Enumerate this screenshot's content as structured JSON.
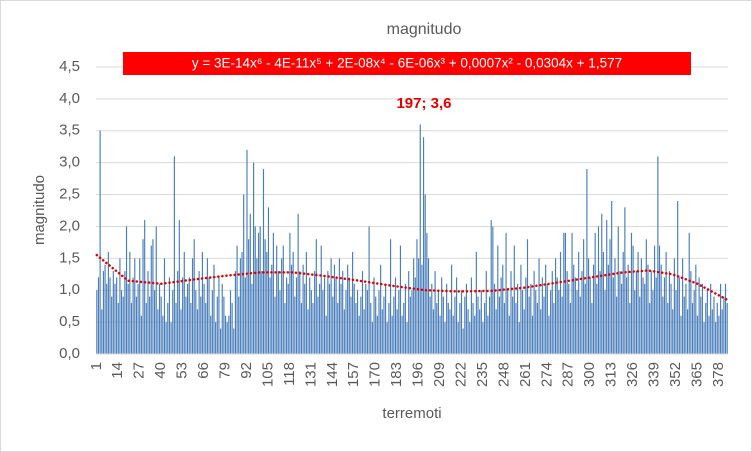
{
  "chart_data": {
    "type": "bar",
    "title": "magnitudo",
    "xlabel": "terremoti",
    "ylabel": "magnitudo",
    "color": "#4a7ebb",
    "grid": true,
    "annotation": "197; 3,6",
    "ylim": [
      0,
      4.5
    ],
    "yticks": [
      {
        "value": 0,
        "label": "0,0"
      },
      {
        "value": 0.5,
        "label": "0,5"
      },
      {
        "value": 1,
        "label": "1,0"
      },
      {
        "value": 1.5,
        "label": "1,5"
      },
      {
        "value": 2,
        "label": "2,0"
      },
      {
        "value": 2.5,
        "label": "2,5"
      },
      {
        "value": 3,
        "label": "3,0"
      },
      {
        "value": 3.5,
        "label": "3,5"
      },
      {
        "value": 4,
        "label": "4,0"
      },
      {
        "value": 4.5,
        "label": "4,5"
      }
    ],
    "categories": [
      1,
      null,
      null,
      null,
      null,
      null,
      null,
      null,
      null,
      null,
      null,
      null,
      null,
      14,
      null,
      null,
      null,
      null,
      null,
      null,
      null,
      null,
      null,
      null,
      null,
      null,
      27,
      null,
      null,
      null,
      null,
      null,
      null,
      null,
      null,
      null,
      null,
      null,
      null,
      40,
      null,
      null,
      null,
      null,
      null,
      null,
      null,
      null,
      null,
      null,
      null,
      null,
      53,
      null,
      null,
      null,
      null,
      null,
      null,
      null,
      null,
      null,
      null,
      null,
      null,
      66,
      null,
      null,
      null,
      null,
      null,
      null,
      null,
      null,
      null,
      null,
      null,
      null,
      79,
      null,
      null,
      null,
      null,
      null,
      null,
      null,
      null,
      null,
      null,
      null,
      null,
      92,
      null,
      null,
      null,
      null,
      null,
      null,
      null,
      null,
      null,
      null,
      null,
      null,
      105,
      null,
      null,
      null,
      null,
      null,
      null,
      null,
      null,
      null,
      null,
      null,
      null,
      118,
      null,
      null,
      null,
      null,
      null,
      null,
      null,
      null,
      null,
      null,
      null,
      null,
      131,
      null,
      null,
      null,
      null,
      null,
      null,
      null,
      null,
      null,
      null,
      null,
      null,
      144,
      null,
      null,
      null,
      null,
      null,
      null,
      null,
      null,
      null,
      null,
      null,
      null,
      157,
      null,
      null,
      null,
      null,
      null,
      null,
      null,
      null,
      null,
      null,
      null,
      null,
      170,
      null,
      null,
      null,
      null,
      null,
      null,
      null,
      null,
      null,
      null,
      null,
      null,
      183,
      null,
      null,
      null,
      null,
      null,
      null,
      null,
      null,
      null,
      null,
      null,
      null,
      196,
      null,
      null,
      null,
      null,
      null,
      null,
      null,
      null,
      null,
      null,
      null,
      null,
      209,
      null,
      null,
      null,
      null,
      null,
      null,
      null,
      null,
      null,
      null,
      null,
      null,
      222,
      null,
      null,
      null,
      null,
      null,
      null,
      null,
      null,
      null,
      null,
      null,
      null,
      235,
      null,
      null,
      null,
      null,
      null,
      null,
      null,
      null,
      null,
      null,
      null,
      null,
      248,
      null,
      null,
      null,
      null,
      null,
      null,
      null,
      null,
      null,
      null,
      null,
      null,
      261,
      null,
      null,
      null,
      null,
      null,
      null,
      null,
      null,
      null,
      null,
      null,
      null,
      274,
      null,
      null,
      null,
      null,
      null,
      null,
      null,
      null,
      null,
      null,
      null,
      null,
      287,
      null,
      null,
      null,
      null,
      null,
      null,
      null,
      null,
      null,
      null,
      null,
      null,
      300,
      null,
      null,
      null,
      null,
      null,
      null,
      null,
      null,
      null,
      null,
      null,
      null,
      313,
      null,
      null,
      null,
      null,
      null,
      null,
      null,
      null,
      null,
      null,
      null,
      null,
      326,
      null,
      null,
      null,
      null,
      null,
      null,
      null,
      null,
      null,
      null,
      null,
      null,
      339,
      null,
      null,
      null,
      null,
      null,
      null,
      null,
      null,
      null,
      null,
      null,
      null,
      352,
      null,
      null,
      null,
      null,
      null,
      null,
      null,
      null,
      null,
      null,
      null,
      null,
      365,
      null,
      null,
      null,
      null,
      null,
      null,
      null,
      null,
      null,
      null,
      null,
      null,
      378,
      null,
      null,
      null,
      null,
      null
    ],
    "values": [
      1.0,
      1.2,
      3.5,
      0.7,
      1.3,
      1.4,
      1.1,
      1.6,
      1.2,
      0.9,
      1.3,
      1.1,
      1.2,
      0.8,
      1.5,
      1.0,
      0.9,
      1.3,
      2.0,
      1.1,
      1.6,
      0.8,
      1.2,
      1.5,
      0.9,
      1.1,
      1.5,
      0.6,
      1.8,
      2.1,
      0.8,
      1.3,
      0.9,
      1.7,
      1.8,
      1.0,
      2.0,
      0.7,
      1.1,
      0.9,
      0.6,
      1.5,
      0.5,
      0.8,
      1.2,
      0.5,
      1.0,
      3.1,
      0.8,
      1.3,
      2.1,
      0.7,
      1.2,
      1.6,
      0.9,
      1.1,
      1.2,
      0.8,
      1.5,
      1.8,
      1.0,
      0.7,
      1.3,
      0.9,
      1.6,
      1.1,
      0.8,
      1.5,
      1.2,
      0.6,
      1.0,
      1.4,
      0.5,
      0.9,
      1.2,
      0.4,
      1.1,
      0.9,
      0.6,
      0.5,
      0.6,
      1.0,
      0.8,
      0.4,
      1.3,
      1.7,
      0.9,
      1.5,
      1.6,
      2.5,
      1.2,
      3.2,
      1.8,
      2.2,
      1.1,
      3.0,
      2.0,
      1.5,
      1.9,
      2.0,
      1.3,
      2.9,
      1.8,
      1.6,
      2.3,
      1.2,
      1.4,
      1.9,
      0.9,
      1.7,
      1.3,
      1.0,
      1.5,
      1.7,
      0.8,
      1.2,
      1.1,
      1.9,
      1.4,
      1.6,
      0.9,
      1.2,
      2.2,
      1.3,
      0.8,
      1.4,
      1.1,
      1.6,
      0.7,
      1.2,
      1.0,
      0.8,
      1.3,
      1.8,
      0.9,
      1.1,
      1.7,
      1.0,
      1.2,
      0.6,
      1.3,
      1.1,
      1.5,
      0.9,
      1.4,
      1.2,
      0.8,
      1.5,
      1.1,
      1.3,
      0.7,
      1.0,
      1.4,
      1.2,
      0.9,
      1.6,
      1.1,
      0.8,
      1.0,
      0.6,
      0.9,
      1.3,
      0.7,
      1.1,
      1.0,
      2.0,
      0.8,
      0.5,
      1.2,
      0.9,
      0.6,
      1.0,
      1.4,
      0.7,
      0.9,
      1.1,
      0.5,
      0.8,
      1.8,
      0.6,
      0.9,
      1.2,
      0.7,
      1.0,
      1.7,
      0.6,
      0.8,
      1.1,
      0.5,
      1.3,
      0.9,
      1.0,
      1.5,
      1.2,
      1.8,
      1.5,
      3.6,
      1.4,
      3.4,
      2.5,
      1.9,
      1.5,
      0.9,
      1.1,
      0.7,
      1.3,
      0.8,
      1.0,
      0.6,
      1.2,
      0.9,
      0.5,
      1.1,
      0.8,
      0.7,
      1.4,
      0.6,
      0.9,
      1.2,
      0.5,
      0.8,
      1.0,
      0.4,
      0.9,
      1.1,
      0.7,
      0.5,
      1.2,
      0.8,
      0.6,
      1.6,
      0.9,
      0.7,
      1.0,
      0.5,
      0.8,
      1.3,
      0.6,
      0.9,
      2.1,
      2.0,
      1.1,
      0.7,
      1.7,
      0.9,
      1.2,
      1.4,
      0.8,
      1.9,
      1.0,
      0.6,
      1.3,
      0.9,
      1.7,
      0.8,
      1.1,
      0.5,
      1.4,
      1.0,
      0.7,
      1.2,
      1.8,
      0.9,
      1.1,
      0.6,
      1.3,
      1.0,
      0.8,
      1.5,
      0.7,
      1.2,
      0.9,
      1.4,
      1.1,
      0.6,
      1.0,
      1.3,
      0.8,
      1.5,
      1.2,
      1.0,
      1.6,
      0.9,
      1.9,
      1.9,
      1.3,
      1.1,
      0.8,
      1.9,
      1.4,
      1.2,
      1.0,
      1.6,
      0.9,
      1.3,
      1.8,
      1.1,
      2.9,
      1.5,
      1.2,
      0.8,
      1.4,
      1.9,
      1.1,
      2.0,
      1.3,
      2.2,
      1.6,
      1.0,
      2.1,
      1.4,
      1.8,
      2.4,
      1.2,
      1.5,
      0.9,
      2.0,
      1.3,
      1.1,
      1.6,
      2.3,
      1.2,
      1.4,
      0.8,
      1.9,
      1.7,
      1.0,
      1.3,
      1.6,
      0.9,
      1.5,
      1.2,
      1.1,
      1.8,
      1.4,
      0.8,
      1.3,
      1.0,
      1.7,
      1.2,
      3.1,
      1.7,
      1.4,
      0.9,
      1.2,
      1.6,
      0.8,
      1.3,
      1.1,
      0.7,
      1.5,
      1.0,
      2.4,
      1.2,
      0.6,
      1.5,
      0.9,
      1.1,
      0.7,
      1.9,
      1.3,
      0.8,
      1.0,
      1.4,
      0.6,
      1.2,
      0.9,
      1.1,
      0.5,
      0.8,
      1.0,
      0.6,
      1.1,
      0.7,
      0.9,
      0.5,
      0.8,
      0.6,
      1.1,
      0.7,
      0.9,
      1.1,
      0.8
    ],
    "trendline": {
      "label": "y = 3E-14x⁶ - 4E-11x⁵ + 2E-08x⁴ - 6E-06x³ + 0,0007x² - 0,0304x + 1,577",
      "color": "#e00000",
      "x": [
        1,
        20,
        40,
        60,
        80,
        100,
        120,
        140,
        160,
        180,
        200,
        220,
        240,
        260,
        280,
        300,
        320,
        335,
        350,
        365,
        383
      ],
      "values": [
        1.55,
        1.15,
        1.1,
        1.17,
        1.23,
        1.28,
        1.28,
        1.22,
        1.15,
        1.07,
        1.0,
        0.98,
        0.99,
        1.04,
        1.12,
        1.2,
        1.28,
        1.31,
        1.25,
        1.1,
        0.85
      ]
    }
  }
}
